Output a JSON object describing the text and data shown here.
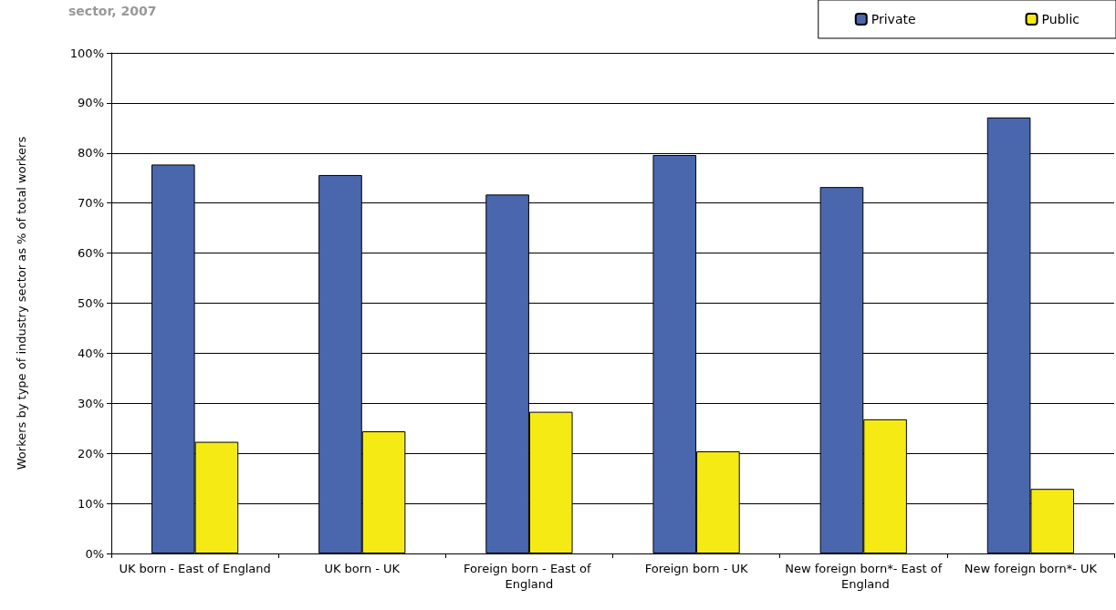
{
  "chart_data": {
    "type": "bar",
    "title": "sector, 2007",
    "ylabel": "Workers by type of industry sector as % of total workers",
    "categories": [
      "UK born - East of England",
      "UK born - UK",
      "Foreign born - East of England",
      "Foreign born - UK",
      "New foreign born*- East of England",
      "New foreign born*- UK"
    ],
    "series": [
      {
        "name": "Private",
        "color": "#4a67ae",
        "values": [
          77.7,
          75.6,
          71.7,
          79.6,
          73.2,
          87.1
        ]
      },
      {
        "name": "Public",
        "color": "#f5ea14",
        "values": [
          22.3,
          24.4,
          28.3,
          20.4,
          26.8,
          12.9
        ]
      }
    ],
    "ylim": [
      0,
      100
    ],
    "yticks": [
      {
        "value": 0,
        "label": "0%"
      },
      {
        "value": 10,
        "label": "10%"
      },
      {
        "value": 20,
        "label": "20%"
      },
      {
        "value": 30,
        "label": "30%"
      },
      {
        "value": 40,
        "label": "40%"
      },
      {
        "value": 50,
        "label": "50%"
      },
      {
        "value": 60,
        "label": "60%"
      },
      {
        "value": 70,
        "label": "70%"
      },
      {
        "value": 80,
        "label": "80%"
      },
      {
        "value": 90,
        "label": "90%"
      },
      {
        "value": 100,
        "label": "100%"
      }
    ],
    "grid": "y",
    "legend": "top right"
  }
}
